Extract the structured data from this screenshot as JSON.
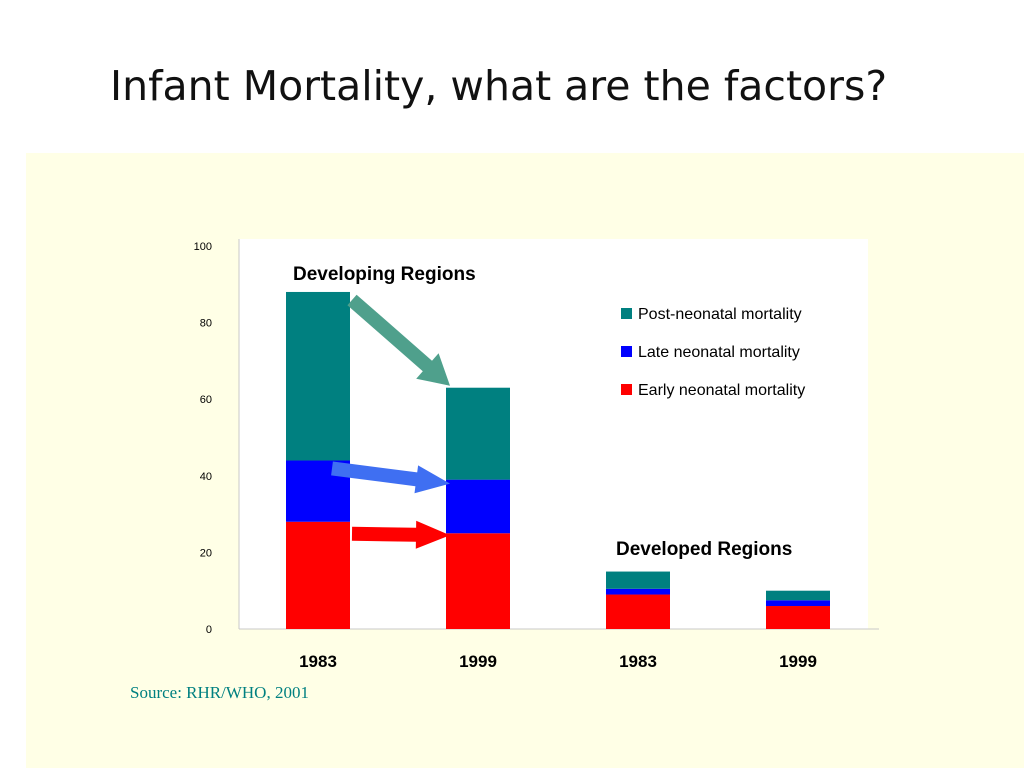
{
  "slide": {
    "title": "Infant Mortality, what are the factors?",
    "source": "Source:  RHR/WHO, 2001"
  },
  "colors": {
    "panel_bg": "#ffffe6",
    "plot_bg": "#ffffff",
    "post_neonatal": "#008080",
    "late_neonatal": "#0000ff",
    "early_neonatal": "#ff0000",
    "arrow_post": "#4fa08c",
    "arrow_late": "#3f6ff2",
    "arrow_early": "#ff0000",
    "source_text": "#008080"
  },
  "chart_data": {
    "type": "bar",
    "stacked": true,
    "categories": [
      "1983",
      "1999",
      "1983",
      "1999"
    ],
    "series": [
      {
        "name": "Early neonatal mortality",
        "values": [
          28,
          25,
          9,
          6
        ]
      },
      {
        "name": "Late neonatal mortality",
        "values": [
          16,
          14,
          1.5,
          1.5
        ]
      },
      {
        "name": "Post-neonatal mortality",
        "values": [
          44,
          24,
          4.5,
          2.5
        ]
      }
    ],
    "ylim": [
      0,
      100
    ],
    "yticks": [
      "0",
      "20",
      "40",
      "60",
      "80",
      "100"
    ],
    "legend_order": [
      "Post-neonatal mortality",
      "Late neonatal mortality",
      "Early neonatal mortality"
    ],
    "legend_position": "top-right",
    "annotations": [
      "Developing Regions",
      "Developed Regions"
    ],
    "grid": false
  }
}
